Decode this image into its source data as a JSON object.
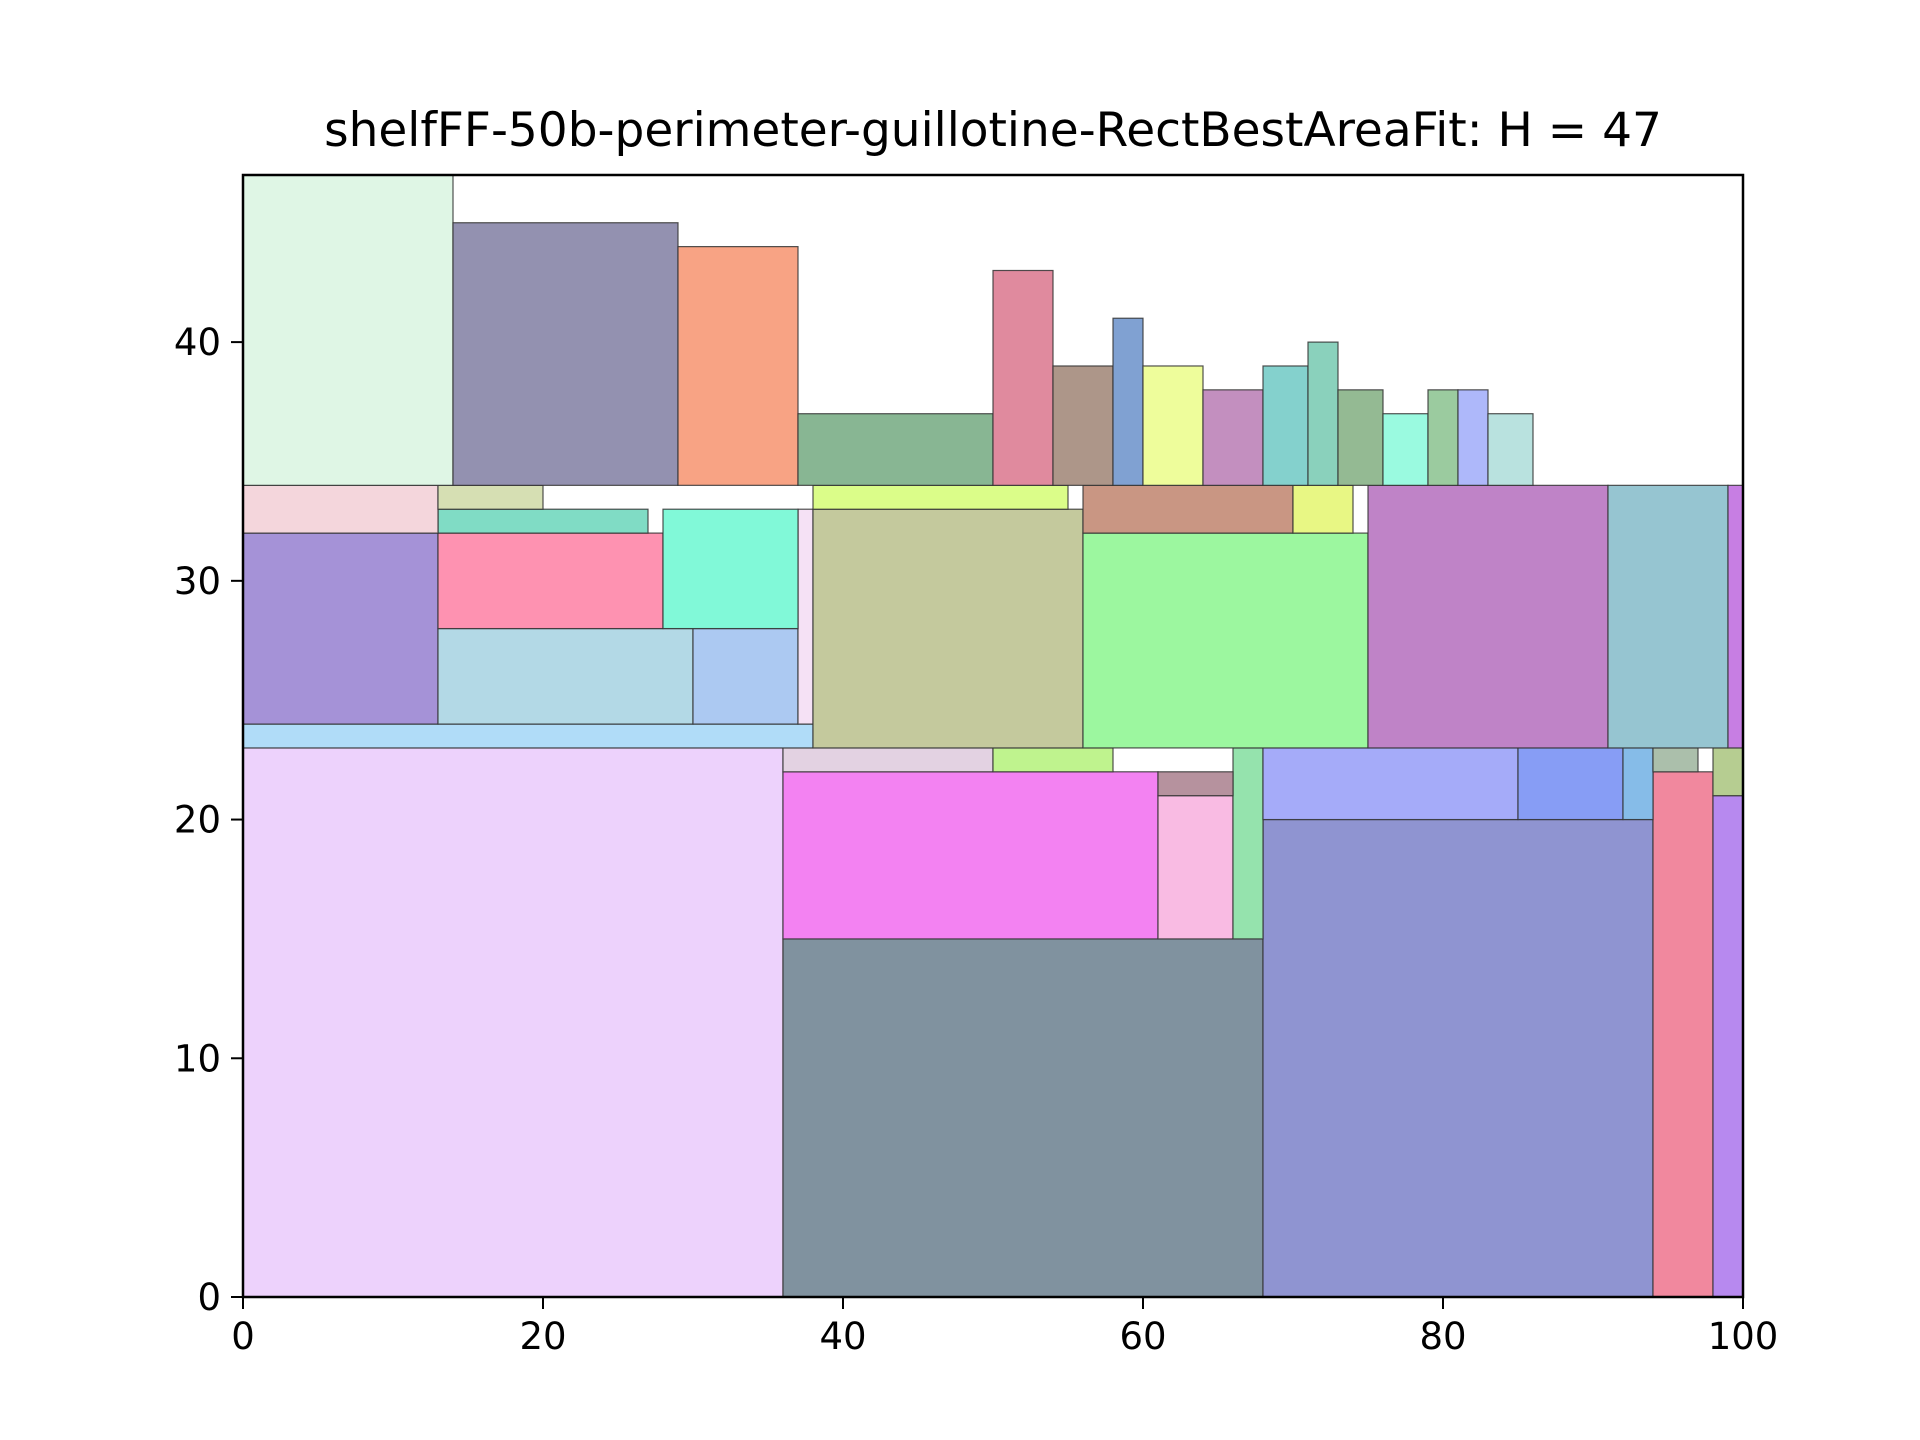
{
  "chart_data": {
    "type": "rectangle-packing",
    "title": "shelfFF-50b-perimeter-guillotine-RectBestAreaFit: H = 47",
    "xlabel": "",
    "ylabel": "",
    "xlim": [
      0,
      100
    ],
    "ylim": [
      0,
      47
    ],
    "xticks": [
      0,
      20,
      40,
      60,
      80,
      100
    ],
    "yticks": [
      0,
      10,
      20,
      30,
      40
    ],
    "grid": false,
    "rects": [
      {
        "x": 0,
        "y": 0,
        "w": 36,
        "h": 23,
        "color": "#edd2fc"
      },
      {
        "x": 36,
        "y": 0,
        "w": 32,
        "h": 15,
        "color": "#80929f"
      },
      {
        "x": 68,
        "y": 0,
        "w": 26,
        "h": 20,
        "color": "#8f94d1"
      },
      {
        "x": 94,
        "y": 0,
        "w": 4,
        "h": 22,
        "color": "#f1889e"
      },
      {
        "x": 98,
        "y": 0,
        "w": 2,
        "h": 21,
        "color": "#b789ef"
      },
      {
        "x": 36,
        "y": 15,
        "w": 25,
        "h": 7,
        "color": "#f382f2"
      },
      {
        "x": 61,
        "y": 15,
        "w": 5,
        "h": 6,
        "color": "#f9bbe3"
      },
      {
        "x": 66,
        "y": 15,
        "w": 2,
        "h": 8,
        "color": "#95e3ad"
      },
      {
        "x": 36,
        "y": 22,
        "w": 14,
        "h": 1,
        "color": "#e3d2e2"
      },
      {
        "x": 50,
        "y": 22,
        "w": 8,
        "h": 1,
        "color": "#bff38e"
      },
      {
        "x": 61,
        "y": 21,
        "w": 5,
        "h": 1,
        "color": "#b6929e"
      },
      {
        "x": 68,
        "y": 20,
        "w": 17,
        "h": 3,
        "color": "#a5abf9"
      },
      {
        "x": 85,
        "y": 20,
        "w": 7,
        "h": 3,
        "color": "#879df5"
      },
      {
        "x": 92,
        "y": 20,
        "w": 2,
        "h": 3,
        "color": "#86bce8"
      },
      {
        "x": 94,
        "y": 22,
        "w": 3,
        "h": 1,
        "color": "#abbfab"
      },
      {
        "x": 98,
        "y": 21,
        "w": 2,
        "h": 2,
        "color": "#b6cd91"
      },
      {
        "x": 0,
        "y": 23,
        "w": 38,
        "h": 1,
        "color": "#b0dcf8"
      },
      {
        "x": 0,
        "y": 24,
        "w": 13,
        "h": 8,
        "color": "#a592d7"
      },
      {
        "x": 13,
        "y": 24,
        "w": 17,
        "h": 4,
        "color": "#b3d9e6"
      },
      {
        "x": 30,
        "y": 24,
        "w": 7,
        "h": 4,
        "color": "#acc9f2"
      },
      {
        "x": 37,
        "y": 24,
        "w": 1,
        "h": 9,
        "color": "#f5e1f5"
      },
      {
        "x": 13,
        "y": 28,
        "w": 15,
        "h": 4,
        "color": "#fe92b1"
      },
      {
        "x": 28,
        "y": 28,
        "w": 9,
        "h": 5,
        "color": "#81f9d8"
      },
      {
        "x": 13,
        "y": 32,
        "w": 14,
        "h": 1,
        "color": "#80dcc5"
      },
      {
        "x": 0,
        "y": 32,
        "w": 13,
        "h": 2,
        "color": "#f4d6dc"
      },
      {
        "x": 13,
        "y": 33,
        "w": 7,
        "h": 1,
        "color": "#d6dfb3"
      },
      {
        "x": 38,
        "y": 23,
        "w": 18,
        "h": 10,
        "color": "#c4c99d"
      },
      {
        "x": 38,
        "y": 33,
        "w": 17,
        "h": 1,
        "color": "#dbfd89"
      },
      {
        "x": 56,
        "y": 23,
        "w": 19,
        "h": 9,
        "color": "#9cf79f"
      },
      {
        "x": 56,
        "y": 32,
        "w": 14,
        "h": 2,
        "color": "#c99683"
      },
      {
        "x": 70,
        "y": 32,
        "w": 4,
        "h": 2,
        "color": "#e8f784"
      },
      {
        "x": 75,
        "y": 23,
        "w": 16,
        "h": 11,
        "color": "#bf83c7"
      },
      {
        "x": 91,
        "y": 23,
        "w": 8,
        "h": 11,
        "color": "#96c5d1"
      },
      {
        "x": 99,
        "y": 23,
        "w": 1,
        "h": 11,
        "color": "#c77ee3"
      },
      {
        "x": 0,
        "y": 34,
        "w": 14,
        "h": 13,
        "color": "#dff6e5"
      },
      {
        "x": 14,
        "y": 34,
        "w": 15,
        "h": 11,
        "color": "#9391b0"
      },
      {
        "x": 29,
        "y": 34,
        "w": 8,
        "h": 10,
        "color": "#f8a384"
      },
      {
        "x": 37,
        "y": 34,
        "w": 13,
        "h": 3,
        "color": "#88b693"
      },
      {
        "x": 50,
        "y": 34,
        "w": 4,
        "h": 9,
        "color": "#e08a9e"
      },
      {
        "x": 54,
        "y": 34,
        "w": 4,
        "h": 5,
        "color": "#ad9689"
      },
      {
        "x": 58,
        "y": 34,
        "w": 2,
        "h": 7,
        "color": "#80a1d2"
      },
      {
        "x": 60,
        "y": 34,
        "w": 4,
        "h": 5,
        "color": "#eefd9b"
      },
      {
        "x": 64,
        "y": 34,
        "w": 4,
        "h": 4,
        "color": "#c38fbf"
      },
      {
        "x": 68,
        "y": 34,
        "w": 3,
        "h": 5,
        "color": "#84d1cd"
      },
      {
        "x": 71,
        "y": 34,
        "w": 2,
        "h": 6,
        "color": "#8ad1bc"
      },
      {
        "x": 73,
        "y": 34,
        "w": 3,
        "h": 4,
        "color": "#94ba93"
      },
      {
        "x": 76,
        "y": 34,
        "w": 3,
        "h": 3,
        "color": "#9afae0"
      },
      {
        "x": 79,
        "y": 34,
        "w": 2,
        "h": 4,
        "color": "#9bcb9f"
      },
      {
        "x": 81,
        "y": 34,
        "w": 2,
        "h": 4,
        "color": "#aeb8fa"
      },
      {
        "x": 83,
        "y": 34,
        "w": 3,
        "h": 3,
        "color": "#b9e2df"
      }
    ]
  }
}
